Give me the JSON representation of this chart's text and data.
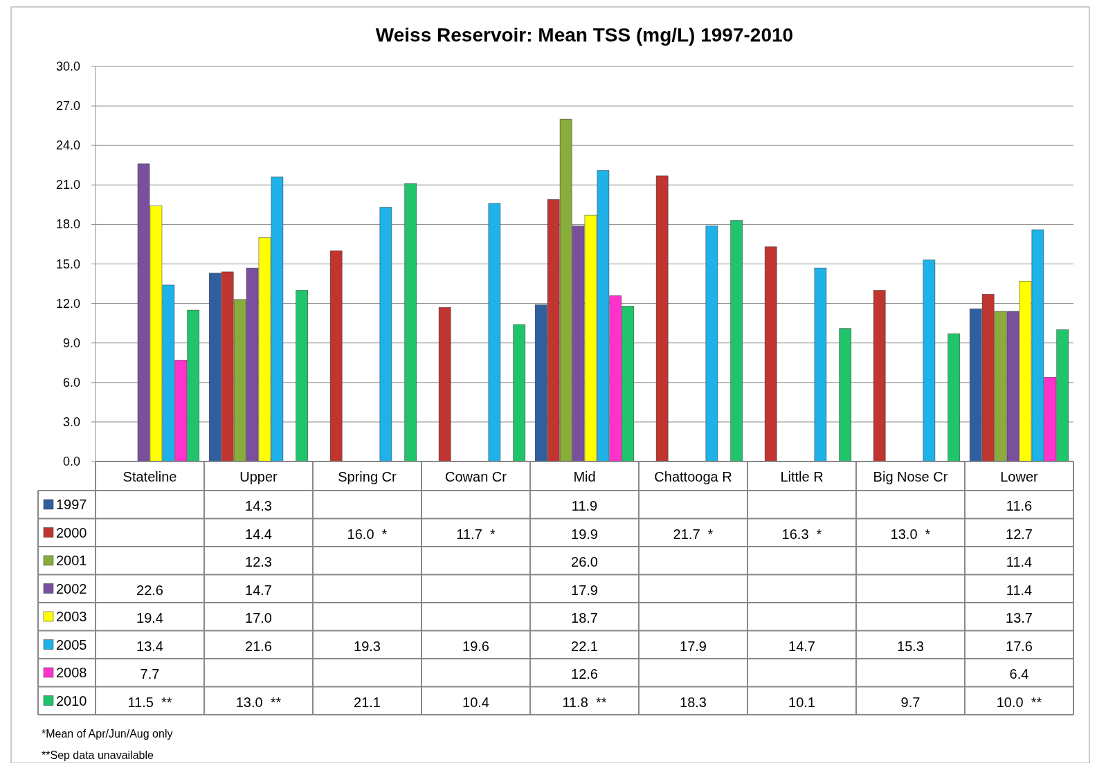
{
  "chart_data": {
    "type": "bar",
    "title": "Weiss Reservoir: Mean TSS (mg/L) 1997-2010",
    "categories": [
      "Stateline",
      "Upper",
      "Spring Cr",
      "Cowan Cr",
      "Mid",
      "Chattooga R",
      "Little R",
      "Big Nose Cr",
      "Lower"
    ],
    "series": [
      {
        "name": "1997",
        "color": "#2f5f9e",
        "values": [
          null,
          14.3,
          null,
          null,
          11.9,
          null,
          null,
          null,
          11.6
        ],
        "value_labels": [
          null,
          "14.3",
          null,
          null,
          "11.9",
          null,
          null,
          null,
          "11.6"
        ]
      },
      {
        "name": "2000",
        "color": "#c0352f",
        "values": [
          null,
          14.4,
          16.0,
          11.7,
          19.9,
          21.7,
          16.3,
          13.0,
          12.7
        ],
        "value_labels": [
          null,
          "14.4",
          "16.0  *",
          "11.7  *",
          "19.9",
          "21.7  *",
          "16.3  *",
          "13.0  *",
          "12.7"
        ]
      },
      {
        "name": "2001",
        "color": "#8aac3c",
        "values": [
          null,
          12.3,
          null,
          null,
          26.0,
          null,
          null,
          null,
          11.4
        ],
        "value_labels": [
          null,
          "12.3",
          null,
          null,
          "26.0",
          null,
          null,
          null,
          "11.4"
        ]
      },
      {
        "name": "2002",
        "color": "#7a509e",
        "values": [
          22.6,
          14.7,
          null,
          null,
          17.9,
          null,
          null,
          null,
          11.4
        ],
        "value_labels": [
          "22.6",
          "14.7",
          null,
          null,
          "17.9",
          null,
          null,
          null,
          "11.4"
        ]
      },
      {
        "name": "2003",
        "color": "#ffff00",
        "values": [
          19.4,
          17.0,
          null,
          null,
          18.7,
          null,
          null,
          null,
          13.7
        ],
        "value_labels": [
          "19.4",
          "17.0",
          null,
          null,
          "18.7",
          null,
          null,
          null,
          "13.7"
        ]
      },
      {
        "name": "2005",
        "color": "#1eb2e8",
        "values": [
          13.4,
          21.6,
          19.3,
          19.6,
          22.1,
          17.9,
          14.7,
          15.3,
          17.6
        ],
        "value_labels": [
          "13.4",
          "21.6",
          "19.3",
          "19.6",
          "22.1",
          "17.9",
          "14.7",
          "15.3",
          "17.6"
        ]
      },
      {
        "name": "2008",
        "color": "#ff33cc",
        "values": [
          7.7,
          null,
          null,
          null,
          12.6,
          null,
          null,
          null,
          6.4
        ],
        "value_labels": [
          "7.7",
          null,
          null,
          null,
          "12.6",
          null,
          null,
          null,
          "6.4"
        ]
      },
      {
        "name": "2010",
        "color": "#1fc46b",
        "values": [
          11.5,
          13.0,
          21.1,
          10.4,
          11.8,
          18.3,
          10.1,
          9.7,
          10.0
        ],
        "value_labels": [
          "11.5  **",
          "13.0  **",
          "21.1",
          "10.4",
          "11.8  **",
          "18.3",
          "10.1",
          "9.7",
          "10.0  **"
        ]
      }
    ],
    "ylim": [
      0,
      30
    ],
    "yticks": [
      {
        "value": 0,
        "label": "0.0"
      },
      {
        "value": 3,
        "label": "3.0"
      },
      {
        "value": 6,
        "label": "6.0"
      },
      {
        "value": 9,
        "label": "9.0"
      },
      {
        "value": 12,
        "label": "12.0"
      },
      {
        "value": 15,
        "label": "15.0"
      },
      {
        "value": 18,
        "label": "18.0"
      },
      {
        "value": 21,
        "label": "21.0"
      },
      {
        "value": 24,
        "label": "24.0"
      },
      {
        "value": 27,
        "label": "27.0"
      },
      {
        "value": 30,
        "label": "30.0"
      }
    ],
    "grid": "y",
    "legend": "bottom",
    "annotations": [
      "*Mean of Apr/Jun/Aug only",
      "**Sep data unavailable"
    ]
  }
}
